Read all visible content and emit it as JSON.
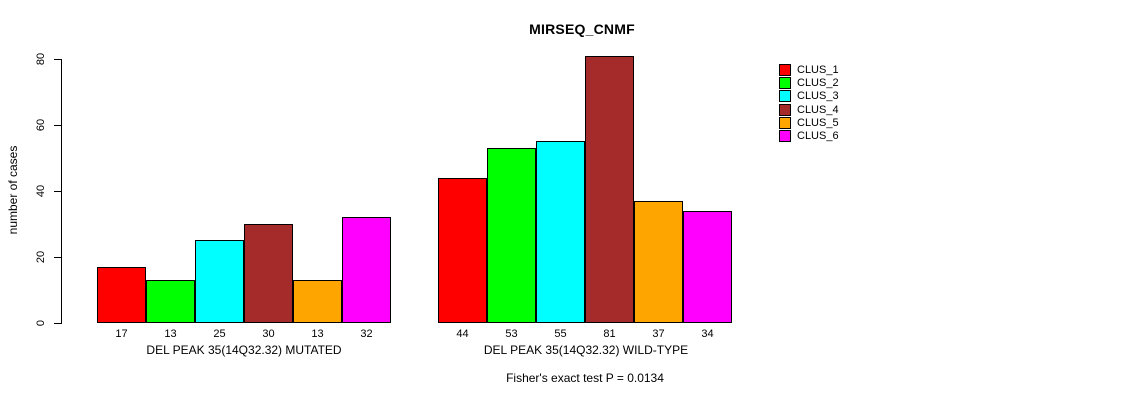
{
  "chart_data": {
    "type": "bar",
    "title": "MIRSEQ_CNMF",
    "subtitle": "Fisher's exact test P = 0.0134",
    "ylabel": "number of cases",
    "xlabel": "",
    "ylim": [
      0,
      80
    ],
    "yticks": [
      0,
      20,
      40,
      60,
      80
    ],
    "grid": false,
    "legend_position": "right",
    "bar_value_labels_shown": true,
    "series_colors": [
      "#FF0000",
      "#00FF00",
      "#00FFFF",
      "#A52A2A",
      "#FFA500",
      "#FF00FF"
    ],
    "groups": [
      {
        "label": "DEL PEAK 35(14Q32.32) MUTATED",
        "values": [
          17,
          13,
          25,
          30,
          13,
          32
        ]
      },
      {
        "label": "DEL PEAK 35(14Q32.32) WILD-TYPE",
        "values": [
          44,
          53,
          55,
          81,
          37,
          34
        ]
      }
    ],
    "legend": [
      {
        "label": "CLUS_1",
        "color": "#FF0000"
      },
      {
        "label": "CLUS_2",
        "color": "#00FF00"
      },
      {
        "label": "CLUS_3",
        "color": "#00FFFF"
      },
      {
        "label": "CLUS_4",
        "color": "#A52A2A"
      },
      {
        "label": "CLUS_5",
        "color": "#FFA500"
      },
      {
        "label": "CLUS_6",
        "color": "#FF00FF"
      }
    ]
  }
}
